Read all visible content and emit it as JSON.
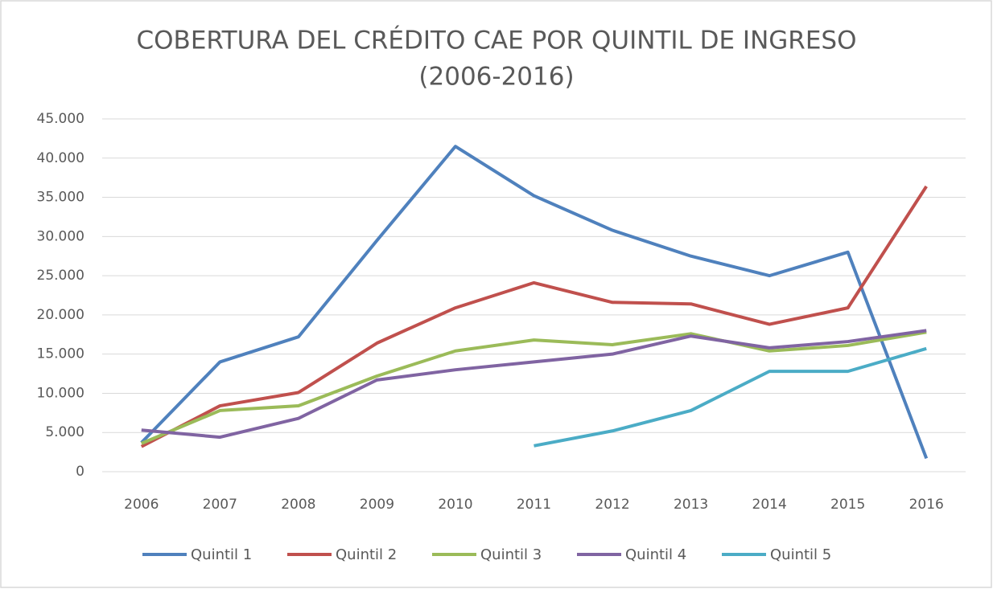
{
  "chart_data": {
    "type": "line",
    "title": [
      "COBERTURA DEL CRÉDITO CAE POR QUINTIL DE INGRESO",
      "(2006-2016)"
    ],
    "categories": [
      "2006",
      "2007",
      "2008",
      "2009",
      "2010",
      "2011",
      "2012",
      "2013",
      "2014",
      "2015",
      "2016"
    ],
    "series": [
      {
        "name": "Quintil 1",
        "color": "#4f81bd",
        "values": [
          3700,
          14000,
          17200,
          29500,
          41500,
          35200,
          30800,
          27500,
          25000,
          28000,
          1700
        ]
      },
      {
        "name": "Quintil 2",
        "color": "#c0504d",
        "values": [
          3200,
          8400,
          10100,
          16400,
          20900,
          24100,
          21600,
          21400,
          18800,
          20900,
          36400
        ]
      },
      {
        "name": "Quintil 3",
        "color": "#9bbb59",
        "values": [
          3600,
          7800,
          8400,
          12200,
          15400,
          16800,
          16200,
          17600,
          15400,
          16100,
          17800
        ]
      },
      {
        "name": "Quintil 4",
        "color": "#8064a2",
        "values": [
          5300,
          4400,
          6800,
          11700,
          13000,
          14000,
          15000,
          17300,
          15800,
          16600,
          18000
        ]
      },
      {
        "name": "Quintil 5",
        "color": "#4bacc6",
        "values": [
          null,
          null,
          null,
          null,
          null,
          3300,
          5200,
          7800,
          12800,
          12800,
          15700
        ]
      }
    ],
    "ylim": [
      0,
      45000
    ],
    "yticks": [
      0,
      {
        "value": 5000,
        "label": "5.000"
      },
      {
        "value": 10000,
        "label": "10.000"
      },
      {
        "value": 15000,
        "label": "15.000"
      },
      {
        "value": 20000,
        "label": "20.000"
      },
      {
        "value": 25000,
        "label": "25.000"
      },
      {
        "value": 30000,
        "label": "30.000"
      },
      {
        "value": 35000,
        "label": "35.000"
      },
      {
        "value": 40000,
        "label": "40.000"
      },
      {
        "value": 45000,
        "label": "45.000"
      }
    ],
    "grid": true,
    "legend": "bottom"
  }
}
